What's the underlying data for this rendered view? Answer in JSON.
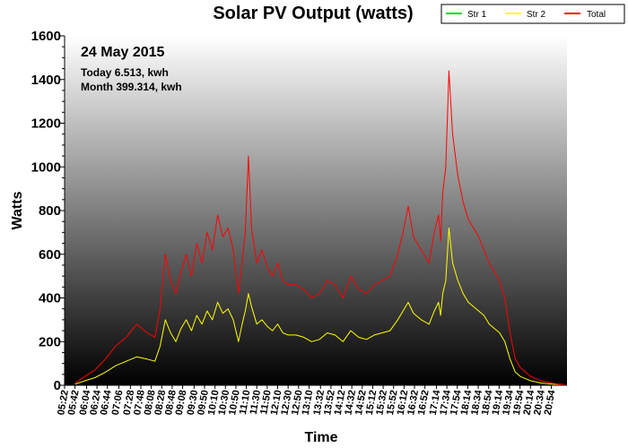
{
  "chart_data": {
    "type": "line",
    "title": "Solar PV Output (watts)",
    "xlabel": "Time",
    "ylabel": "Watts",
    "ylim": [
      0,
      1600
    ],
    "yticks": [
      0,
      200,
      400,
      600,
      800,
      1000,
      1200,
      1400,
      1600
    ],
    "xlim": [
      "05:22",
      "21:24"
    ],
    "xticks": [
      "05:22",
      "05:42",
      "06:04",
      "06:24",
      "06:44",
      "07:06",
      "07:28",
      "07:48",
      "08:08",
      "08:28",
      "08:48",
      "09:08",
      "09:30",
      "09:50",
      "10:10",
      "10:30",
      "10:50",
      "11:10",
      "11:30",
      "11:50",
      "12:10",
      "12:30",
      "12:50",
      "13:10",
      "13:32",
      "13:52",
      "14:12",
      "14:32",
      "14:52",
      "15:12",
      "15:32",
      "15:52",
      "16:12",
      "16:32",
      "16:52",
      "17:14",
      "17:34",
      "17:54",
      "18:14",
      "18:34",
      "18:54",
      "19:14",
      "19:34",
      "19:54",
      "20:14",
      "20:34",
      "20:54"
    ],
    "grid": false,
    "legend_position": "top-right",
    "annotations": {
      "date": "24 May 2015",
      "today": "Today 6.513, kwh",
      "month": "Month 399.314, kwh"
    },
    "series": [
      {
        "name": "Str 1",
        "color": "#00dd00",
        "x": [],
        "values": []
      },
      {
        "name": "Str 2",
        "color": "#ffff00",
        "x": [
          "05:42",
          "06:00",
          "06:20",
          "06:40",
          "07:00",
          "07:20",
          "07:40",
          "08:00",
          "08:15",
          "08:25",
          "08:35",
          "08:45",
          "08:55",
          "09:05",
          "09:15",
          "09:25",
          "09:35",
          "09:45",
          "09:55",
          "10:05",
          "10:15",
          "10:25",
          "10:35",
          "10:45",
          "10:55",
          "11:02",
          "11:08",
          "11:14",
          "11:20",
          "11:30",
          "11:40",
          "11:50",
          "12:00",
          "12:10",
          "12:20",
          "12:30",
          "12:45",
          "13:00",
          "13:15",
          "13:30",
          "13:45",
          "14:00",
          "14:15",
          "14:30",
          "14:45",
          "15:00",
          "15:15",
          "15:30",
          "15:45",
          "16:00",
          "16:10",
          "16:20",
          "16:30",
          "16:45",
          "17:00",
          "17:10",
          "17:18",
          "17:22",
          "17:26",
          "17:32",
          "17:38",
          "17:45",
          "17:55",
          "18:05",
          "18:15",
          "18:25",
          "18:35",
          "18:45",
          "18:55",
          "19:05",
          "19:15",
          "19:25",
          "19:35",
          "19:45",
          "19:55",
          "20:05",
          "20:15",
          "20:25",
          "20:35",
          "20:45",
          "20:55",
          "21:05",
          "21:15",
          "21:24"
        ],
        "values": [
          5,
          20,
          35,
          60,
          90,
          110,
          130,
          120,
          110,
          180,
          300,
          240,
          200,
          260,
          300,
          250,
          320,
          280,
          340,
          300,
          380,
          330,
          350,
          300,
          200,
          280,
          340,
          420,
          360,
          280,
          300,
          270,
          250,
          280,
          240,
          230,
          230,
          220,
          200,
          210,
          240,
          230,
          200,
          250,
          220,
          210,
          230,
          240,
          250,
          300,
          340,
          380,
          330,
          300,
          280,
          340,
          380,
          320,
          420,
          480,
          720,
          560,
          480,
          420,
          380,
          360,
          340,
          320,
          280,
          260,
          240,
          200,
          120,
          60,
          40,
          30,
          20,
          15,
          10,
          8,
          5,
          3,
          2,
          0
        ]
      },
      {
        "name": "Total",
        "color": "#ff0000",
        "x": [
          "05:42",
          "06:00",
          "06:20",
          "06:40",
          "07:00",
          "07:20",
          "07:40",
          "08:00",
          "08:15",
          "08:25",
          "08:35",
          "08:45",
          "08:55",
          "09:05",
          "09:15",
          "09:25",
          "09:35",
          "09:45",
          "09:55",
          "10:05",
          "10:15",
          "10:25",
          "10:35",
          "10:45",
          "10:55",
          "11:02",
          "11:08",
          "11:14",
          "11:20",
          "11:30",
          "11:40",
          "11:50",
          "12:00",
          "12:10",
          "12:20",
          "12:30",
          "12:45",
          "13:00",
          "13:15",
          "13:30",
          "13:45",
          "14:00",
          "14:15",
          "14:30",
          "14:45",
          "15:00",
          "15:15",
          "15:30",
          "15:45",
          "16:00",
          "16:10",
          "16:20",
          "16:30",
          "16:45",
          "17:00",
          "17:10",
          "17:18",
          "17:22",
          "17:26",
          "17:32",
          "17:38",
          "17:45",
          "17:55",
          "18:05",
          "18:15",
          "18:25",
          "18:35",
          "18:45",
          "18:55",
          "19:05",
          "19:15",
          "19:25",
          "19:35",
          "19:45",
          "19:55",
          "20:05",
          "20:15",
          "20:25",
          "20:35",
          "20:45",
          "20:55",
          "21:05",
          "21:15",
          "21:24"
        ],
        "values": [
          10,
          40,
          70,
          120,
          180,
          220,
          280,
          240,
          220,
          350,
          600,
          480,
          420,
          520,
          600,
          500,
          650,
          560,
          700,
          620,
          780,
          680,
          720,
          620,
          420,
          560,
          700,
          1050,
          720,
          560,
          620,
          540,
          500,
          560,
          480,
          460,
          460,
          440,
          400,
          420,
          480,
          460,
          400,
          500,
          440,
          420,
          460,
          480,
          500,
          600,
          700,
          820,
          680,
          620,
          560,
          700,
          780,
          660,
          880,
          1000,
          1440,
          1150,
          960,
          840,
          760,
          720,
          680,
          620,
          560,
          520,
          480,
          400,
          240,
          120,
          80,
          60,
          40,
          30,
          20,
          15,
          10,
          6,
          4,
          0
        ]
      }
    ]
  }
}
